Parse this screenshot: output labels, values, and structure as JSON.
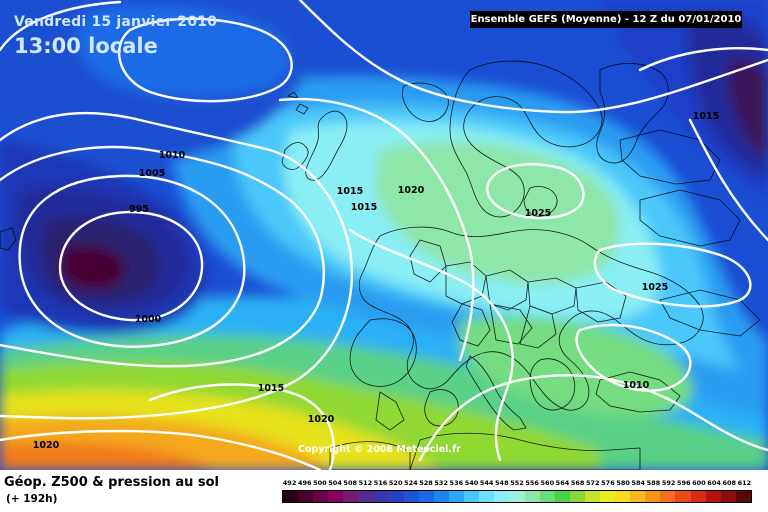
{
  "map": {
    "date_label": "Vendredi 15 janvier 2010",
    "time_label": "13:00 locale",
    "run_label": "Ensemble GEFS (Moyenne)  -  12 Z du 07/01/2010",
    "copyright": "Copyright © 2008 Meteociel.fr",
    "field_title": "Géop. Z500 & pression au sol",
    "forecast_hour": "(+ 192h)"
  },
  "isobar_labels": [
    {
      "id": "1010-west",
      "text": "1010"
    },
    {
      "id": "1005-west",
      "text": "1005"
    },
    {
      "id": "995-low",
      "text": "995"
    },
    {
      "id": "1000-low",
      "text": "1000"
    },
    {
      "id": "1015-mid",
      "text": "1015"
    },
    {
      "id": "1015-mid-b",
      "text": "1015"
    },
    {
      "id": "1020-center",
      "text": "1020"
    },
    {
      "id": "1025-scandinavia",
      "text": "1025"
    },
    {
      "id": "1015-northeast",
      "text": "1015"
    },
    {
      "id": "1025-east",
      "text": "1025"
    },
    {
      "id": "1010-balkans",
      "text": "1010"
    },
    {
      "id": "1015-south",
      "text": "1015"
    },
    {
      "id": "1020-south",
      "text": "1020"
    },
    {
      "id": "1020-southwest",
      "text": "1020"
    }
  ],
  "legend": {
    "ticks": [
      "492",
      "496",
      "500",
      "504",
      "508",
      "512",
      "516",
      "520",
      "524",
      "528",
      "532",
      "536",
      "540",
      "544",
      "548",
      "552",
      "556",
      "560",
      "564",
      "568",
      "572",
      "576",
      "580",
      "584",
      "588",
      "592",
      "596",
      "600",
      "604",
      "608",
      "612"
    ],
    "colors": [
      "#2a0018",
      "#4a0030",
      "#6a0048",
      "#860060",
      "#7a1878",
      "#5a2a90",
      "#3a38a8",
      "#2a40c0",
      "#1e54d6",
      "#1a6ae6",
      "#1a88f0",
      "#2aa8f6",
      "#46c6fa",
      "#6ae0fc",
      "#8aeefa",
      "#9af0d8",
      "#8ee6a8",
      "#6adc78",
      "#4ad24a",
      "#8ad836",
      "#c6e22a",
      "#eaea22",
      "#f8d820",
      "#f8b81e",
      "#f8961c",
      "#f4701a",
      "#ec4a18",
      "#d82a16",
      "#b41414",
      "#8a0e0e",
      "#5a0808"
    ]
  }
}
